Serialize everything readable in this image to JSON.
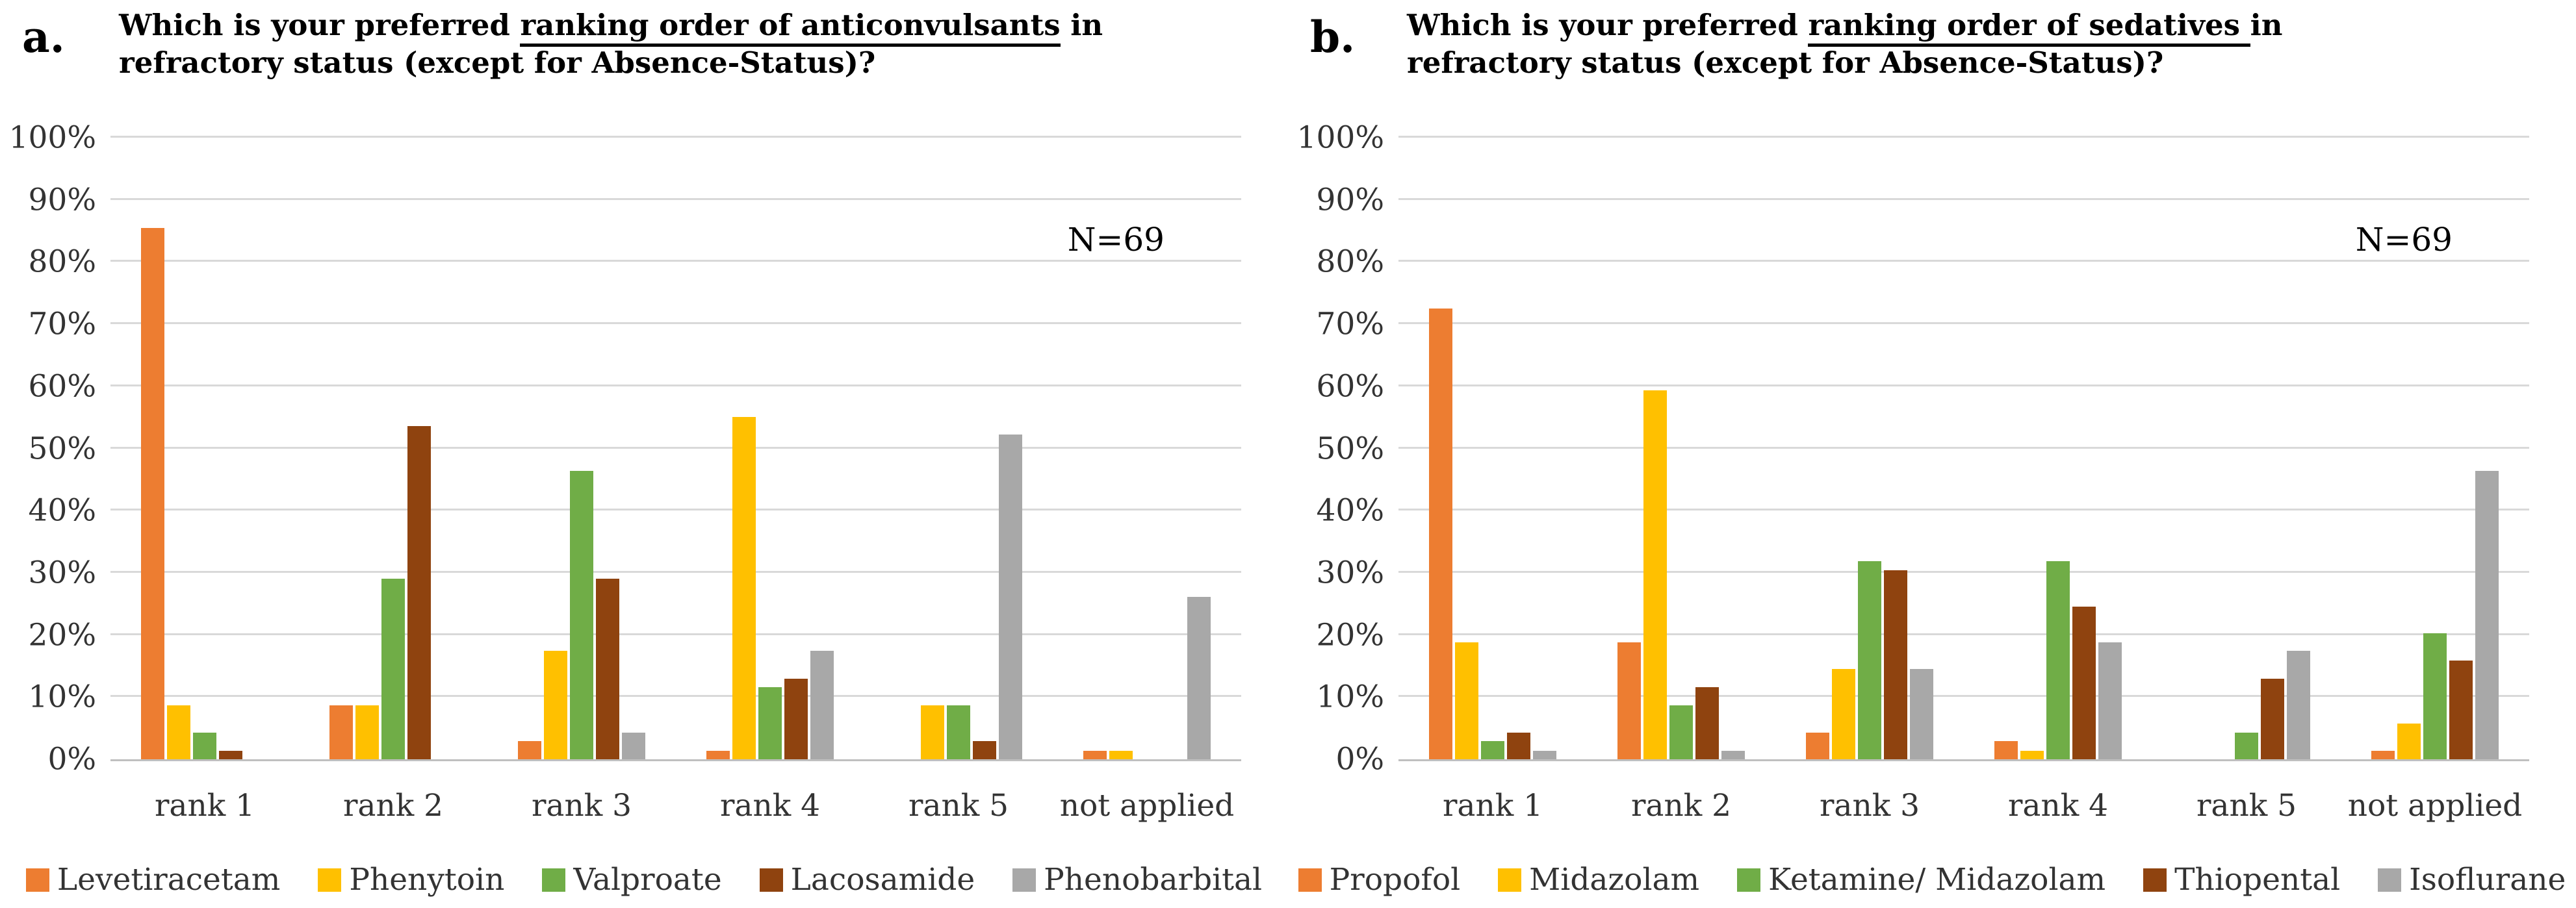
{
  "figure": {
    "description_note": "two grouped bar charts side by side",
    "grid_color": "#d9d9d9",
    "axis_color": "#bfbfbf",
    "text_color": "#333333"
  },
  "chart_data": [
    {
      "type": "bar",
      "panel_letter": "a.",
      "title": {
        "line1_prefix": "Which is your preferred ",
        "line1_underlined": "ranking order of anticonvulsants",
        "line1_suffix": " in",
        "line2": "refractory status (except for Absence-Status)?"
      },
      "annotation": "N=69",
      "categories": [
        "rank 1",
        "rank 2",
        "rank 3",
        "rank 4",
        "rank 5",
        "not applied"
      ],
      "series": [
        {
          "name": "Levetiracetam",
          "color": "#ED7D31",
          "values": [
            85.5,
            8.7,
            2.9,
            1.4,
            0,
            1.4
          ]
        },
        {
          "name": "Phenytoin",
          "color": "#FFC000",
          "values": [
            8.7,
            8.7,
            17.4,
            55.1,
            8.7,
            1.4
          ]
        },
        {
          "name": "Valproate",
          "color": "#70AD47",
          "values": [
            4.3,
            29.0,
            46.4,
            11.6,
            8.7,
            0
          ]
        },
        {
          "name": "Lacosamide",
          "color": "#8F430F",
          "values": [
            1.4,
            53.6,
            29.0,
            13.0,
            2.9,
            0
          ]
        },
        {
          "name": "Phenobarbital",
          "color": "#A8A8A8",
          "values": [
            0,
            0,
            4.3,
            17.4,
            52.2,
            26.1
          ]
        }
      ],
      "ylim": [
        0,
        100
      ],
      "ytick_step": 10,
      "yticks": [
        "0%",
        "10%",
        "20%",
        "30%",
        "40%",
        "50%",
        "60%",
        "70%",
        "80%",
        "90%",
        "100%"
      ],
      "grid": true,
      "legend_position": "bottom"
    },
    {
      "type": "bar",
      "panel_letter": "b.",
      "title": {
        "line1_prefix": "Which is your preferred ",
        "line1_underlined": "ranking order of sedatives ",
        "line1_suffix": "in",
        "line2": "refractory status (except for Absence-Status)?"
      },
      "annotation": "N=69",
      "categories": [
        "rank 1",
        "rank 2",
        "rank 3",
        "rank 4",
        "rank 5",
        "not applied"
      ],
      "series": [
        {
          "name": "Propofol",
          "color": "#ED7D31",
          "values": [
            72.5,
            18.8,
            4.3,
            2.9,
            0,
            1.4
          ]
        },
        {
          "name": "Midazolam",
          "color": "#FFC000",
          "values": [
            18.8,
            59.4,
            14.5,
            1.4,
            0,
            5.8
          ]
        },
        {
          "name": "Ketamine/ Midazolam",
          "color": "#70AD47",
          "values": [
            2.9,
            8.7,
            31.9,
            31.9,
            4.3,
            20.3
          ]
        },
        {
          "name": "Thiopental",
          "color": "#8F430F",
          "values": [
            4.3,
            11.6,
            30.4,
            24.6,
            13.0,
            15.9
          ]
        },
        {
          "name": "Isoflurane",
          "color": "#A8A8A8",
          "values": [
            1.4,
            1.4,
            14.5,
            18.8,
            17.4,
            46.4
          ]
        }
      ],
      "ylim": [
        0,
        100
      ],
      "ytick_step": 10,
      "yticks": [
        "0%",
        "10%",
        "20%",
        "30%",
        "40%",
        "50%",
        "60%",
        "70%",
        "80%",
        "90%",
        "100%"
      ],
      "grid": true,
      "legend_position": "bottom"
    }
  ]
}
